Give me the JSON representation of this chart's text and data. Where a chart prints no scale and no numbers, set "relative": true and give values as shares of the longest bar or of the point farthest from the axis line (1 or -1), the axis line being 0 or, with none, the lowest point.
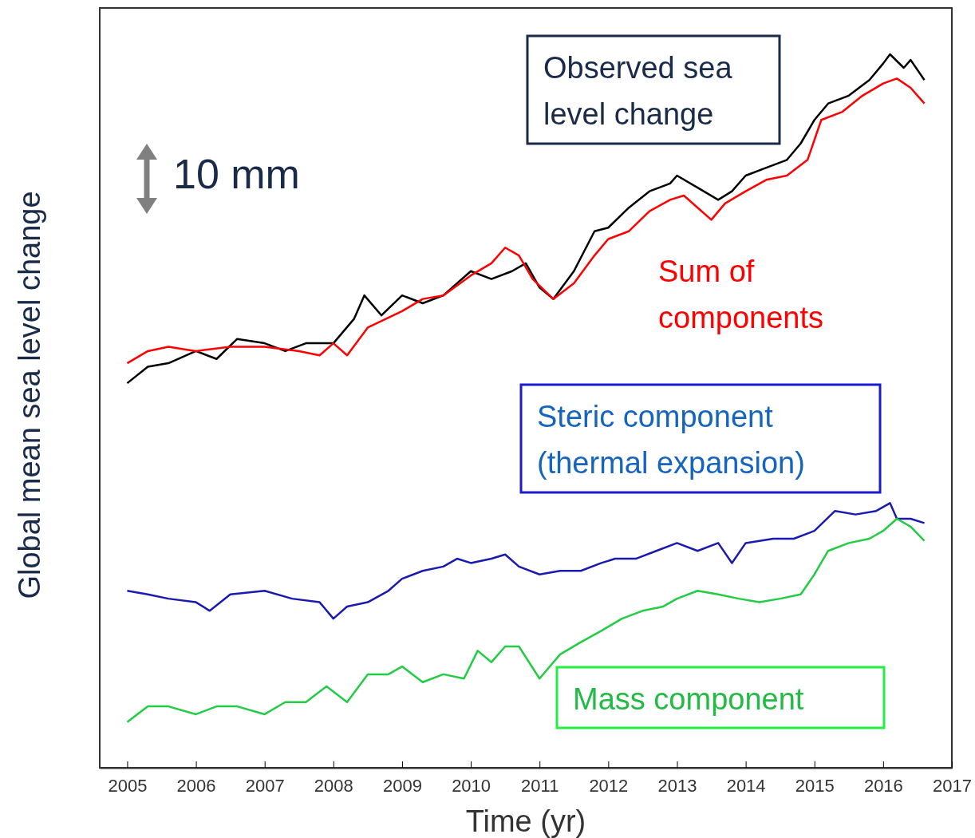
{
  "chart_data": {
    "type": "line",
    "relative": true,
    "xlabel": "Time (yr)",
    "ylabel": "Global mean sea level change",
    "xlim": [
      2004.6,
      2017
    ],
    "xticks": [
      2005,
      2006,
      2007,
      2008,
      2009,
      2010,
      2011,
      2012,
      2013,
      2014,
      2015,
      2016,
      2017
    ],
    "annotations": [
      "10 mm"
    ],
    "series": [
      {
        "name": "Observed sea level change",
        "color": "#000000",
        "x": [
          2005,
          2005.3,
          2005.6,
          2006,
          2006.3,
          2006.6,
          2007,
          2007.3,
          2007.6,
          2008,
          2008.3,
          2008.45,
          2008.7,
          2009,
          2009.3,
          2009.6,
          2010,
          2010.3,
          2010.6,
          2010.8,
          2011,
          2011.2,
          2011.5,
          2011.8,
          2012,
          2012.3,
          2012.6,
          2012.9,
          2013,
          2013.3,
          2013.6,
          2013.8,
          2014,
          2014.3,
          2014.6,
          2014.8,
          2015,
          2015.2,
          2015.5,
          2015.8,
          2016,
          2016.1,
          2016.3,
          2016.4,
          2016.6
        ],
        "values": [
          0.539,
          0.562,
          0.567,
          0.584,
          0.573,
          0.601,
          0.595,
          0.584,
          0.595,
          0.595,
          0.629,
          0.662,
          0.634,
          0.662,
          0.651,
          0.662,
          0.696,
          0.685,
          0.696,
          0.707,
          0.673,
          0.657,
          0.696,
          0.752,
          0.757,
          0.785,
          0.808,
          0.819,
          0.83,
          0.813,
          0.796,
          0.808,
          0.83,
          0.841,
          0.852,
          0.875,
          0.908,
          0.931,
          0.942,
          0.964,
          0.987,
          1,
          0.981,
          0.992,
          0.964
        ]
      },
      {
        "name": "Sum of components",
        "color": "#ff0000",
        "x": [
          2005,
          2005.3,
          2005.6,
          2006,
          2006.5,
          2007,
          2007.5,
          2007.8,
          2008,
          2008.2,
          2008.5,
          2009,
          2009.3,
          2009.6,
          2010,
          2010.3,
          2010.5,
          2010.7,
          2010.9,
          2011.2,
          2011.5,
          2011.8,
          2012,
          2012.3,
          2012.6,
          2012.9,
          2013.1,
          2013.3,
          2013.5,
          2013.7,
          2014,
          2014.3,
          2014.6,
          2014.9,
          2015.1,
          2015.4,
          2015.7,
          2016,
          2016.2,
          2016.4,
          2016.6
        ],
        "values": [
          0.567,
          0.584,
          0.59,
          0.584,
          0.59,
          0.59,
          0.584,
          0.578,
          0.595,
          0.578,
          0.617,
          0.64,
          0.657,
          0.662,
          0.69,
          0.707,
          0.729,
          0.718,
          0.685,
          0.657,
          0.679,
          0.718,
          0.741,
          0.752,
          0.78,
          0.796,
          0.802,
          0.785,
          0.768,
          0.791,
          0.808,
          0.824,
          0.83,
          0.852,
          0.908,
          0.919,
          0.942,
          0.959,
          0.966,
          0.953,
          0.931
        ]
      },
      {
        "name": "Steric component (thermal expansion)",
        "color": "#1a1ab0",
        "x": [
          2005,
          2005.3,
          2005.6,
          2006,
          2006.2,
          2006.5,
          2007,
          2007.4,
          2007.8,
          2008,
          2008.2,
          2008.5,
          2008.8,
          2009,
          2009.3,
          2009.6,
          2009.8,
          2010,
          2010.3,
          2010.5,
          2010.7,
          2011,
          2011.3,
          2011.6,
          2011.9,
          2012.1,
          2012.4,
          2012.7,
          2013,
          2013.3,
          2013.6,
          2013.8,
          2014,
          2014.4,
          2014.7,
          2015,
          2015.3,
          2015.6,
          2015.9,
          2016.1,
          2016.2,
          2016.4,
          2016.6
        ],
        "values": [
          0.248,
          0.243,
          0.237,
          0.232,
          0.22,
          0.243,
          0.248,
          0.237,
          0.232,
          0.209,
          0.226,
          0.232,
          0.248,
          0.265,
          0.276,
          0.282,
          0.293,
          0.287,
          0.293,
          0.299,
          0.282,
          0.271,
          0.276,
          0.276,
          0.287,
          0.293,
          0.293,
          0.304,
          0.315,
          0.304,
          0.315,
          0.287,
          0.315,
          0.321,
          0.321,
          0.332,
          0.36,
          0.355,
          0.36,
          0.371,
          0.349,
          0.349,
          0.343
        ]
      },
      {
        "name": "Mass component",
        "color": "#22cc44",
        "x": [
          2005,
          2005.3,
          2005.6,
          2006,
          2006.3,
          2006.6,
          2007,
          2007.3,
          2007.6,
          2007.9,
          2008.2,
          2008.5,
          2008.8,
          2009,
          2009.3,
          2009.6,
          2009.9,
          2010.1,
          2010.3,
          2010.5,
          2010.7,
          2011,
          2011.3,
          2011.6,
          2011.9,
          2012.2,
          2012.5,
          2012.8,
          2013,
          2013.3,
          2013.6,
          2013.9,
          2014.2,
          2014.5,
          2014.8,
          2015,
          2015.2,
          2015.5,
          2015.8,
          2016,
          2016.2,
          2016.4,
          2016.6
        ],
        "values": [
          0.064,
          0.086,
          0.086,
          0.075,
          0.086,
          0.086,
          0.075,
          0.092,
          0.092,
          0.114,
          0.092,
          0.131,
          0.131,
          0.142,
          0.12,
          0.131,
          0.125,
          0.164,
          0.148,
          0.17,
          0.17,
          0.125,
          0.159,
          0.176,
          0.192,
          0.209,
          0.22,
          0.226,
          0.237,
          0.248,
          0.243,
          0.237,
          0.232,
          0.237,
          0.243,
          0.271,
          0.304,
          0.315,
          0.321,
          0.332,
          0.349,
          0.338,
          0.318
        ]
      }
    ]
  }
}
